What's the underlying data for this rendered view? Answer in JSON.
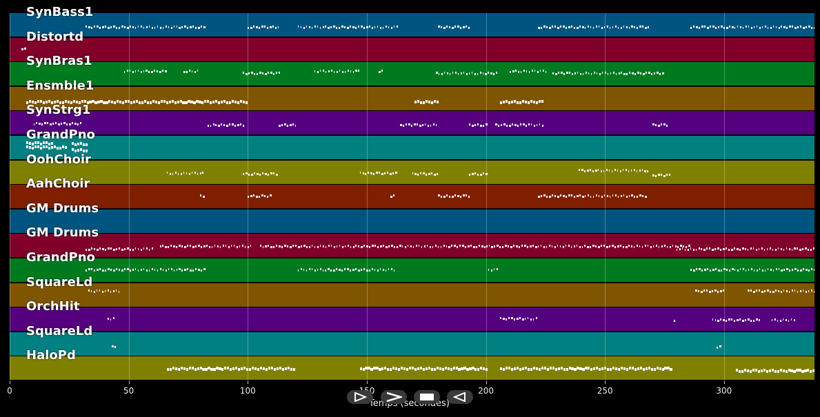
{
  "colors": [
    "#005580",
    "#80002a",
    "#007a1f",
    "#805500",
    "#55007f",
    "#008080",
    "#808000",
    "#801f00"
  ],
  "tracks": [
    {
      "name": "SynBass1"
    },
    {
      "name": "Distortd"
    },
    {
      "name": "SynBras1"
    },
    {
      "name": "Ensmble1"
    },
    {
      "name": "SynStrg1"
    },
    {
      "name": "GrandPno"
    },
    {
      "name": "OohChoir"
    },
    {
      "name": "AahChoir"
    },
    {
      "name": "GM Drums"
    },
    {
      "name": "GM Drums"
    },
    {
      "name": "GrandPno"
    },
    {
      "name": "SquareLd"
    },
    {
      "name": "OrchHit"
    },
    {
      "name": "SquareLd"
    },
    {
      "name": "HaloPd"
    }
  ],
  "axis": {
    "xlabel": "Temps (secondes)",
    "range": [
      0,
      338
    ],
    "ticks": [
      {
        "value": 0,
        "label": "0"
      },
      {
        "value": 50,
        "label": "50"
      },
      {
        "value": 100,
        "label": "100"
      },
      {
        "value": 150,
        "label": "150"
      },
      {
        "value": 200,
        "label": "200"
      },
      {
        "value": 250,
        "label": "250"
      },
      {
        "value": 300,
        "label": "300"
      }
    ]
  },
  "controls": [
    {
      "name": "play-button",
      "icon": "play-icon"
    },
    {
      "name": "next-button",
      "icon": "chevron-right-icon"
    },
    {
      "name": "stop-button",
      "icon": "stop-icon"
    },
    {
      "name": "rewind-button",
      "icon": "play-reverse-icon"
    }
  ]
}
